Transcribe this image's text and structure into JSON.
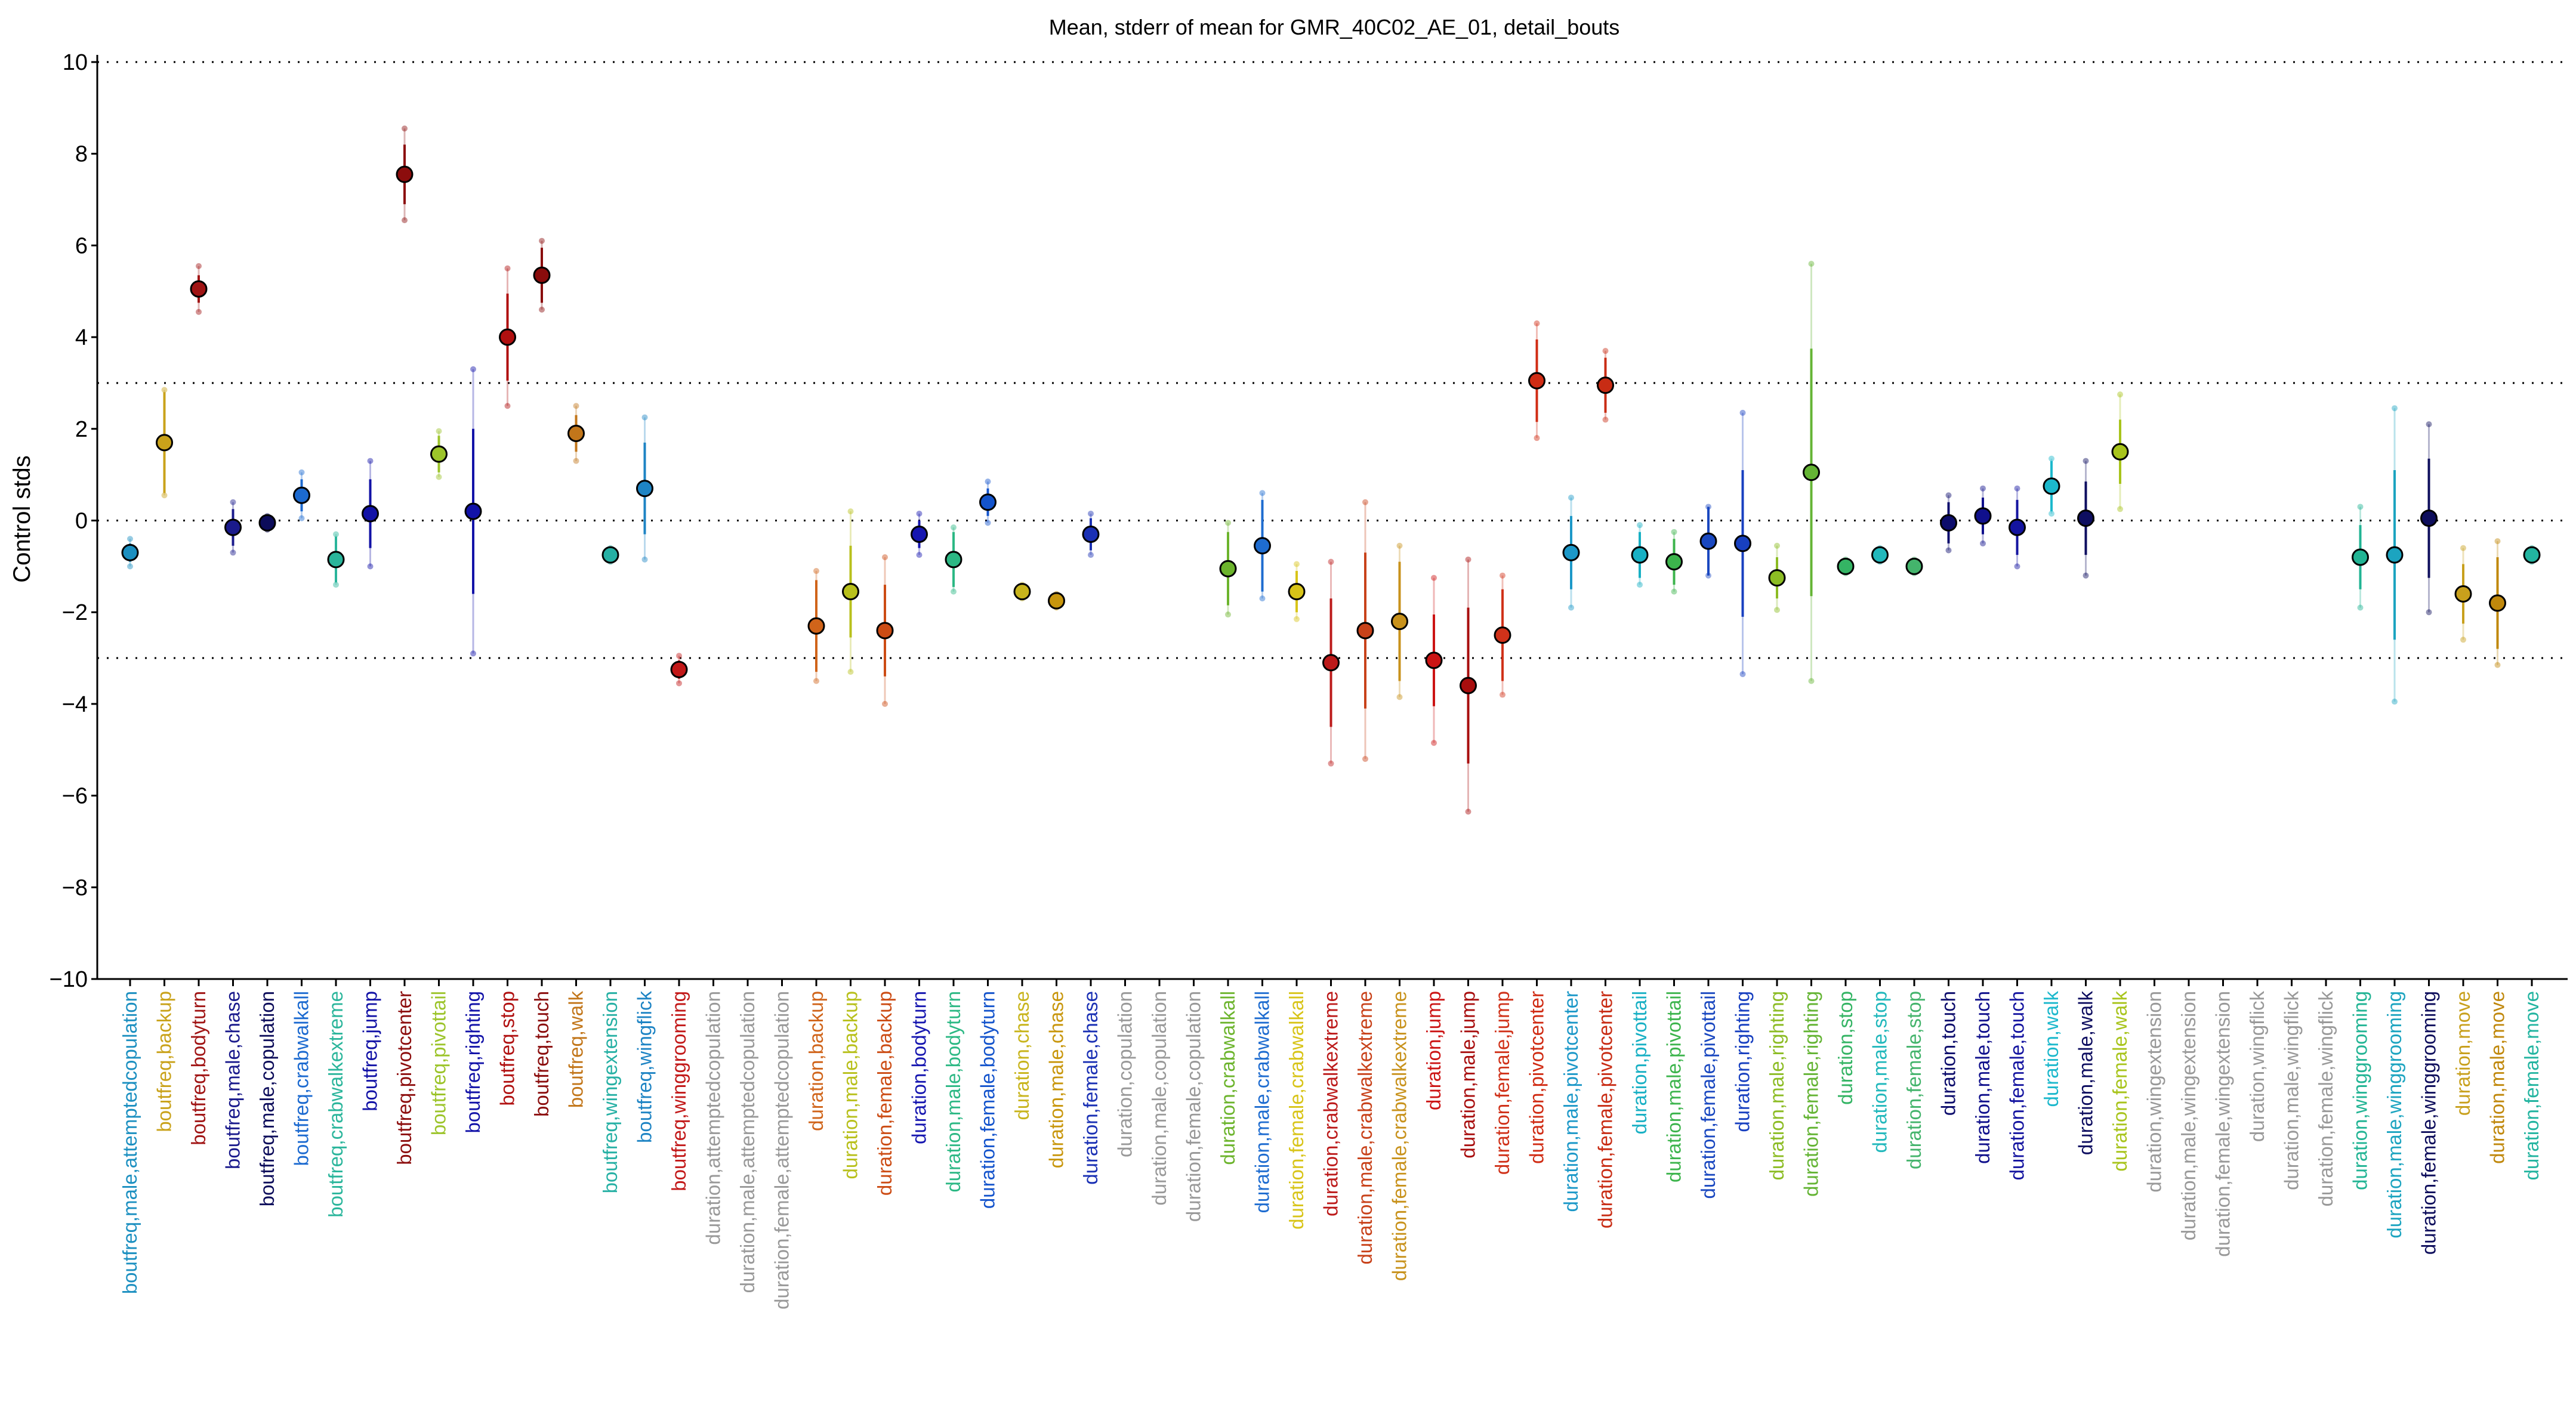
{
  "chart_data": {
    "type": "scatter",
    "title": "Mean, stderr of mean for GMR_40C02_AE_01, detail_bouts",
    "ylabel": "Control stds",
    "xlabel": "",
    "ylim": [
      -10,
      10
    ],
    "yticks": [
      10,
      8,
      6,
      4,
      2,
      0,
      -2,
      -4,
      -6,
      -8,
      -10
    ],
    "reference_lines": [
      10,
      3,
      0,
      -3,
      -10
    ],
    "grid": false,
    "categories": [
      "boutfreq,male,attemptedcopulation",
      "boutfreq,backup",
      "boutfreq,bodyturn",
      "boutfreq,male,chase",
      "boutfreq,male,copulation",
      "boutfreq,crabwalkall",
      "boutfreq,crabwalkextreme",
      "boutfreq,jump",
      "boutfreq,pivotcenter",
      "boutfreq,pivottail",
      "boutfreq,righting",
      "boutfreq,stop",
      "boutfreq,touch",
      "boutfreq,walk",
      "boutfreq,wingextension",
      "boutfreq,wingflick",
      "boutfreq,winggrooming",
      "duration,attemptedcopulation",
      "duration,male,attemptedcopulation",
      "duration,female,attemptedcopulation",
      "duration,backup",
      "duration,male,backup",
      "duration,female,backup",
      "duration,bodyturn",
      "duration,male,bodyturn",
      "duration,female,bodyturn",
      "duration,chase",
      "duration,male,chase",
      "duration,female,chase",
      "duration,copulation",
      "duration,male,copulation",
      "duration,female,copulation",
      "duration,crabwalkall",
      "duration,male,crabwalkall",
      "duration,female,crabwalkall",
      "duration,crabwalkextreme",
      "duration,male,crabwalkextreme",
      "duration,female,crabwalkextreme",
      "duration,jump",
      "duration,male,jump",
      "duration,female,jump",
      "duration,pivotcenter",
      "duration,male,pivotcenter",
      "duration,female,pivotcenter",
      "duration,pivottail",
      "duration,male,pivottail",
      "duration,female,pivottail",
      "duration,righting",
      "duration,male,righting",
      "duration,female,righting",
      "duration,stop",
      "duration,male,stop",
      "duration,female,stop",
      "duration,touch",
      "duration,male,touch",
      "duration,female,touch",
      "duration,walk",
      "duration,male,walk",
      "duration,female,walk",
      "duration,wingextension",
      "duration,male,wingextension",
      "duration,female,wingextension",
      "duration,wingflick",
      "duration,male,wingflick",
      "duration,female,wingflick",
      "duration,winggrooming",
      "duration,male,winggrooming",
      "duration,female,winggrooming",
      "duration,move",
      "duration,male,move",
      "duration,female,move"
    ],
    "colors": [
      "#1b8fc0",
      "#c9a21a",
      "#a01414",
      "#1a1a8c",
      "#0c0c5a",
      "#1c6ad0",
      "#2ab59b",
      "#1212a6",
      "#8c0d0d",
      "#9cc42a",
      "#1212a8",
      "#b01010",
      "#8a0c0c",
      "#c2761a",
      "#26b0a4",
      "#1e84c4",
      "#c21818",
      "#999999",
      "#999999",
      "#999999",
      "#d0641a",
      "#b8c01c",
      "#cc4c14",
      "#1616b0",
      "#2cb884",
      "#1454cc",
      "#c8b41c",
      "#c8960c",
      "#1a30b4",
      "#999999",
      "#999999",
      "#999999",
      "#6cb42c",
      "#1e6cd0",
      "#d8c418",
      "#bc1a1a",
      "#c8421a",
      "#c8921c",
      "#cc1414",
      "#a80e0e",
      "#d0321a",
      "#d02c14",
      "#1c98c8",
      "#c82c14",
      "#18b0c4",
      "#3cb44c",
      "#1a48c0",
      "#1840c0",
      "#8cbc24",
      "#64b434",
      "#34b464",
      "#22b8bc",
      "#44b46c",
      "#0c0c6c",
      "#10108c",
      "#1414a0",
      "#1cb8cc",
      "#0e0e60",
      "#a8c41c",
      "#999999",
      "#999999",
      "#999999",
      "#999999",
      "#999999",
      "#999999",
      "#22b494",
      "#1ca4c0",
      "#0e0e5c",
      "#c8a01c",
      "#c0880c",
      "#22b4a0"
    ],
    "series": [
      {
        "mean": [
          -0.7,
          1.7,
          5.05,
          -0.15,
          -0.05,
          0.55,
          -0.85,
          0.15,
          7.55,
          1.45,
          0.2,
          4.0,
          5.35,
          1.9,
          -0.75,
          0.7,
          -3.25,
          null,
          null,
          null,
          -2.3,
          -1.55,
          -2.4,
          -0.3,
          -0.85,
          0.4,
          -1.55,
          -1.75,
          -0.3,
          null,
          null,
          null,
          -1.05,
          -0.55,
          -1.55,
          -3.1,
          -2.4,
          -2.2,
          -3.05,
          -3.6,
          -2.5,
          3.05,
          -0.7,
          2.95,
          -0.75,
          -0.9,
          -0.45,
          -0.5,
          -1.25,
          1.05,
          -1.0,
          -0.75,
          -1.0,
          -0.05,
          0.1,
          -0.15,
          0.75,
          0.05,
          1.5,
          null,
          null,
          null,
          null,
          null,
          null,
          -0.8,
          -0.75,
          0.05,
          -1.6,
          -1.8,
          -0.75
        ],
        "stderr": [
          0.2,
          1.1,
          0.3,
          0.4,
          0.1,
          0.35,
          0.5,
          0.75,
          0.65,
          0.4,
          1.8,
          0.95,
          0.6,
          0.4,
          0.1,
          1.0,
          0.2,
          null,
          null,
          null,
          1.0,
          1.0,
          1.0,
          0.3,
          0.6,
          0.3,
          0.1,
          0.1,
          0.35,
          null,
          null,
          null,
          0.8,
          1.0,
          0.45,
          1.4,
          1.7,
          1.3,
          1.0,
          1.7,
          1.0,
          0.9,
          0.8,
          0.6,
          0.5,
          0.5,
          0.75,
          1.6,
          0.45,
          2.7,
          0.1,
          0.1,
          0.1,
          0.45,
          0.4,
          0.6,
          0.55,
          0.8,
          0.7,
          null,
          null,
          null,
          null,
          null,
          null,
          0.7,
          1.85,
          1.3,
          0.65,
          1.0,
          0.1
        ],
        "spread": [
          0.3,
          1.15,
          0.5,
          0.55,
          0.15,
          0.5,
          0.55,
          1.15,
          1.0,
          0.5,
          3.1,
          1.5,
          0.75,
          0.6,
          0.15,
          1.55,
          0.3,
          null,
          null,
          null,
          1.2,
          1.75,
          1.6,
          0.45,
          0.7,
          0.45,
          0.15,
          0.15,
          0.45,
          null,
          null,
          null,
          1.0,
          1.15,
          0.6,
          2.2,
          2.8,
          1.65,
          1.8,
          2.75,
          1.3,
          1.25,
          1.2,
          0.75,
          0.65,
          0.65,
          0.75,
          2.85,
          0.7,
          4.55,
          0.15,
          0.15,
          0.15,
          0.6,
          0.6,
          0.85,
          0.6,
          1.25,
          1.25,
          null,
          null,
          null,
          null,
          null,
          null,
          1.1,
          3.2,
          2.05,
          1.0,
          1.35,
          0.15
        ]
      }
    ]
  }
}
